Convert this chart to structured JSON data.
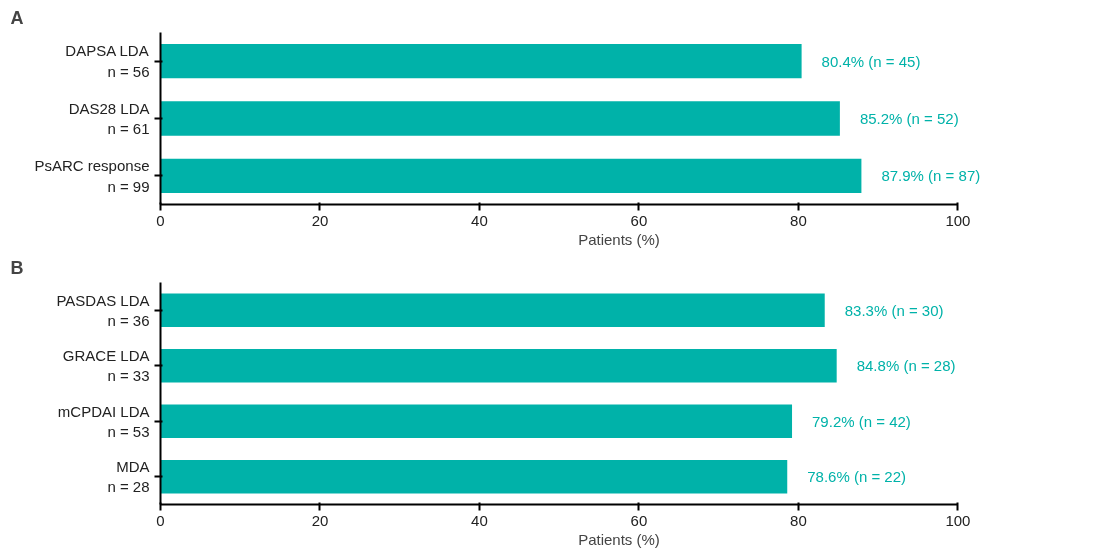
{
  "chart_data": [
    {
      "type": "bar",
      "orientation": "horizontal",
      "title": "A",
      "xlabel": "Patients (%)",
      "categories": [
        "DAPSA LDA\nn = 56",
        "DAS28 LDA\nn = 61",
        "PsARC response\nn = 99"
      ],
      "values": [
        80.4,
        85.2,
        87.9
      ],
      "color": "#00b2a9",
      "value_labels": [
        "80.4% (n = 45)",
        "85.2% (n = 52)",
        "87.9% (n = 87)"
      ],
      "xlim": [
        0,
        100
      ],
      "xticks": [
        0,
        20,
        40,
        60,
        80,
        100
      ],
      "grid": false
    },
    {
      "type": "bar",
      "orientation": "horizontal",
      "title": "B",
      "xlabel": "Patients (%)",
      "categories": [
        "PASDAS LDA\nn = 36",
        "GRACE LDA\nn = 33",
        "mCPDAI LDA\nn = 53",
        "MDA\nn = 28"
      ],
      "values": [
        83.3,
        84.8,
        79.2,
        78.6
      ],
      "color": "#00b2a9",
      "value_labels": [
        "83.3% (n = 30)",
        "84.8% (n = 28)",
        "79.2% (n = 42)",
        "78.6% (n = 22)"
      ],
      "xlim": [
        0,
        100
      ],
      "xticks": [
        0,
        20,
        40,
        60,
        80,
        100
      ],
      "grid": false
    }
  ]
}
